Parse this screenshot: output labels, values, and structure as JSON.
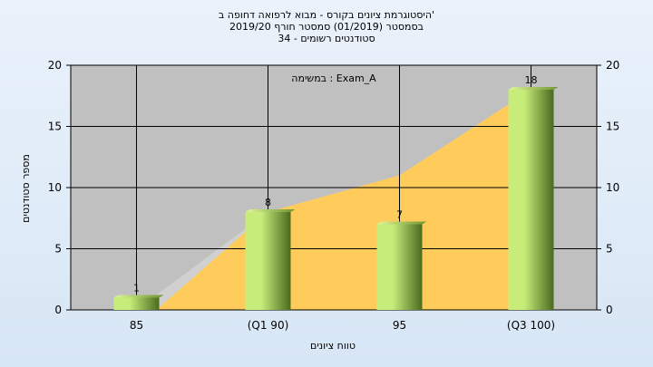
{
  "chart_data": {
    "type": "bar",
    "title_lines": [
      "היסטוגרמת ציונים בקורס - מבוא לרפואה דחופה ב'",
      "בסמסטר  (01/2019)  סמסטר חורף 2019/20",
      "סטודנטים רשומים - 34"
    ],
    "annotation": "במשימה : Exam_A",
    "categories": [
      "85",
      "(Q1 90)",
      "95",
      "(Q3 100)"
    ],
    "values": [
      1,
      8,
      7,
      18
    ],
    "cumulative_area": {
      "name": "",
      "x": [
        "85",
        "(Q1 90)",
        "95",
        "(Q3 100)"
      ],
      "values": [
        0,
        8,
        11,
        18
      ]
    },
    "xlabel": "טווח ציונים",
    "ylabel": "מספר סטודנטים",
    "ylim": [
      0,
      20
    ],
    "yticks": [
      0,
      5,
      10,
      15,
      20
    ],
    "y2ticks": [
      0,
      5,
      10,
      15,
      20
    ],
    "grid": true,
    "colors": {
      "plot_bg": "#c0c0c0",
      "area_fill": "#ffcc5c",
      "area_shadow": "#d0d0d0",
      "bar_light": "#c8ec7a",
      "bar_dark": "#4a6a1e",
      "grid": "#000000"
    }
  }
}
